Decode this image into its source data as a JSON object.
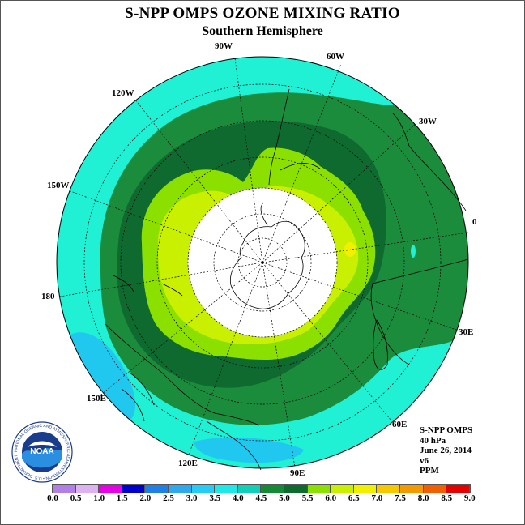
{
  "title": "S-NPP OMPS OZONE MIXING RATIO",
  "subtitle": "Southern Hemisphere",
  "longitude_labels": [
    "90W",
    "60W",
    "30W",
    "0",
    "30E",
    "60E",
    "90E",
    "120E",
    "150E",
    "180",
    "150W",
    "120W"
  ],
  "info": {
    "instrument": "S-NPP OMPS",
    "level": "40 hPa",
    "date": "June 26, 2014",
    "version": "v6",
    "units": "PPM"
  },
  "logo": {
    "text": "NOAA",
    "ring_text": "NATIONAL OCEANIC AND ATMOSPHERIC ADMINISTRATION • U.S. DEPARTMENT OF COMMERCE"
  },
  "colorbar": {
    "labels": [
      "0.0",
      "0.5",
      "1.0",
      "1.5",
      "2.0",
      "2.5",
      "3.0",
      "3.5",
      "4.0",
      "4.5",
      "5.0",
      "5.5",
      "6.0",
      "6.5",
      "7.0",
      "7.5",
      "8.0",
      "8.5",
      "9.0"
    ],
    "colors": [
      "#b27fe6",
      "#dcb2f0",
      "#e600e6",
      "#0000d0",
      "#1f7fe6",
      "#30a8f0",
      "#26ccf5",
      "#1fe8e8",
      "#11cfb6",
      "#148a36",
      "#0d6b30",
      "#8be000",
      "#c8f000",
      "#f0f000",
      "#f5c800",
      "#f59900",
      "#f06000",
      "#e60000",
      "#8b5a3c"
    ]
  },
  "map_colors": {
    "band_3_5_4_0": "#20f0d4",
    "band_3_0_3_5": "#20c8f0",
    "band_4_0_4_5": "#1b8c3c",
    "band_4_5_5_0": "#0f6a30",
    "band_5_0_5_5": "#8ce000",
    "band_5_5_6_0": "#c8f000",
    "band_6_0_6_5": "#f0f000",
    "polar_night": "#ffffff"
  }
}
